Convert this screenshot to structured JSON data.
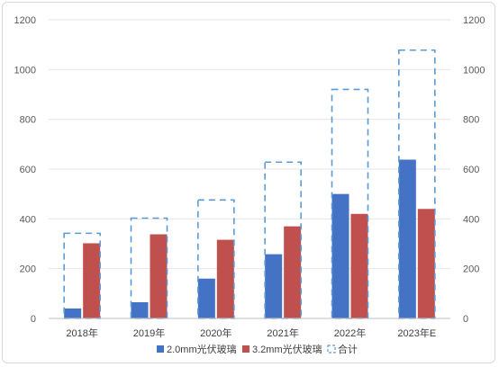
{
  "chart_data": {
    "type": "bar",
    "categories": [
      "2018年",
      "2019年",
      "2020年",
      "2021年",
      "2022年",
      "2023年E"
    ],
    "series": [
      {
        "name": "2.0mm光伏玻璃",
        "values": [
          40,
          65,
          160,
          258,
          500,
          638
        ],
        "color": "#4472c4",
        "style": "filled"
      },
      {
        "name": "3.2mm光伏玻璃",
        "values": [
          302,
          338,
          316,
          370,
          420,
          440
        ],
        "color": "#c0504d",
        "style": "filled"
      },
      {
        "name": "合计",
        "values": [
          342,
          403,
          476,
          628,
          920,
          1078
        ],
        "color": "#5b9bd5",
        "style": "dashed-outline"
      }
    ],
    "ylim": [
      0,
      1200
    ],
    "yticks": [
      0,
      200,
      400,
      600,
      800,
      1000,
      1200
    ],
    "y_axis_sides": [
      "left",
      "right"
    ],
    "grid": true,
    "legend_position": "bottom",
    "title": "",
    "xlabel": "",
    "ylabel": ""
  }
}
